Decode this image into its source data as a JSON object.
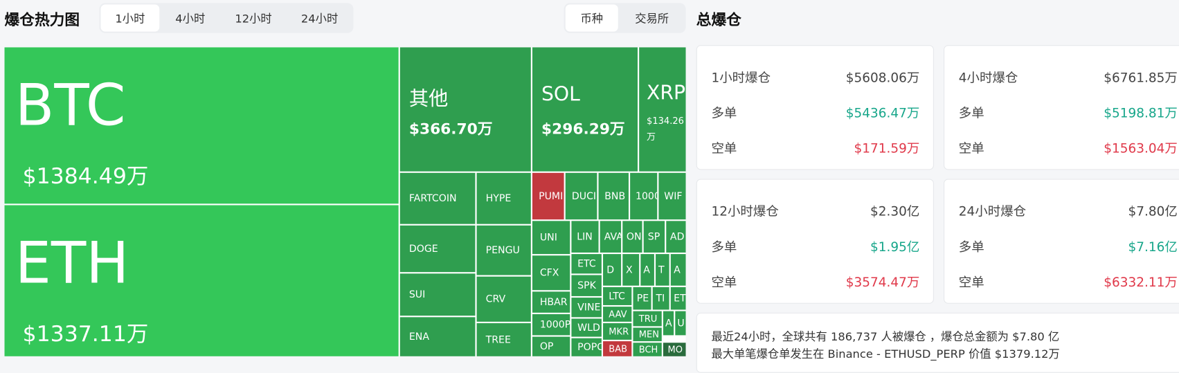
{
  "header": {
    "title": "爆仓热力图",
    "time_tabs": [
      "1小时",
      "4小时",
      "12小时",
      "24小时"
    ],
    "active_time_tab": 0,
    "view_tabs": [
      "币种",
      "交易所"
    ],
    "active_view_tab": 0
  },
  "treemap": {
    "tiles": [
      {
        "label": "BTC",
        "value": "$1384.49万",
        "color": "#34c759"
      },
      {
        "label": "ETH",
        "value": "$1337.11万",
        "color": "#34c759"
      },
      {
        "label": "其他",
        "value": "$366.70万",
        "color": "#2f9e4f"
      },
      {
        "label": "SOL",
        "value": "$296.29万",
        "color": "#2f9e4f"
      },
      {
        "label": "XRP",
        "value": "$134.26万",
        "color": "#2f9e4f"
      },
      {
        "label": "FARTCOIN",
        "color": "#2f9e4f"
      },
      {
        "label": "HYPE",
        "color": "#2f9e4f"
      },
      {
        "label": "DOGE",
        "color": "#2f9e4f"
      },
      {
        "label": "PENGU",
        "color": "#2f9e4f"
      },
      {
        "label": "SUI",
        "color": "#2f9e4f"
      },
      {
        "label": "CRV",
        "color": "#2f9e4f"
      },
      {
        "label": "ENA",
        "color": "#2f9e4f"
      },
      {
        "label": "TREE",
        "color": "#2f9e4f"
      },
      {
        "label": "PUMI",
        "color": "#c2393e"
      },
      {
        "label": "DUCI",
        "color": "#2f9e4f"
      },
      {
        "label": "BNB",
        "color": "#2f9e4f"
      },
      {
        "label": "1000",
        "color": "#2f9e4f"
      },
      {
        "label": "WIF",
        "color": "#2f9e4f"
      },
      {
        "label": "UNI",
        "color": "#2f9e4f"
      },
      {
        "label": "LIN",
        "color": "#2f9e4f"
      },
      {
        "label": "AVA",
        "color": "#2f9e4f"
      },
      {
        "label": "ON",
        "color": "#2f9e4f"
      },
      {
        "label": "SP",
        "color": "#2f9e4f"
      },
      {
        "label": "AD",
        "color": "#2f9e4f"
      },
      {
        "label": "CFX",
        "color": "#2f9e4f"
      },
      {
        "label": "ETC",
        "color": "#2f9e4f"
      },
      {
        "label": "D",
        "color": "#2f9e4f"
      },
      {
        "label": "X",
        "color": "#2f9e4f"
      },
      {
        "label": "A",
        "color": "#2f9e4f"
      },
      {
        "label": "T",
        "color": "#2f9e4f"
      },
      {
        "label": "A",
        "color": "#2f9e4f"
      },
      {
        "label": "SPK",
        "color": "#2f9e4f"
      },
      {
        "label": "HBAR",
        "color": "#2f9e4f"
      },
      {
        "label": "VINE",
        "color": "#2f9e4f"
      },
      {
        "label": "LTC",
        "color": "#2f9e4f"
      },
      {
        "label": "AAV",
        "color": "#2f9e4f"
      },
      {
        "label": "PE",
        "color": "#2f9e4f"
      },
      {
        "label": "TI",
        "color": "#2f9e4f"
      },
      {
        "label": "ET",
        "color": "#2f9e4f"
      },
      {
        "label": "1000P",
        "color": "#2f9e4f"
      },
      {
        "label": "WLD",
        "color": "#2f9e4f"
      },
      {
        "label": "MKR",
        "color": "#2f9e4f"
      },
      {
        "label": "TRU",
        "color": "#2f9e4f"
      },
      {
        "label": "A",
        "color": "#2f9e4f"
      },
      {
        "label": "U",
        "color": "#2f9e4f"
      },
      {
        "label": "MEN",
        "color": "#2f9e4f"
      },
      {
        "label": "OP",
        "color": "#2f9e4f"
      },
      {
        "label": "POPC",
        "color": "#2f9e4f"
      },
      {
        "label": "BAB",
        "color": "#c2393e"
      },
      {
        "label": "BCH",
        "color": "#2f9e4f"
      },
      {
        "label": "MO",
        "color": "#2a6b3d"
      }
    ]
  },
  "summary": {
    "title": "总爆仓",
    "cards": [
      {
        "title": "1小时爆仓",
        "total": "$5608.06万",
        "long_label": "多单",
        "long": "$5436.47万",
        "short_label": "空单",
        "short": "$171.59万"
      },
      {
        "title": "4小时爆仓",
        "total": "$6761.85万",
        "long_label": "多单",
        "long": "$5198.81万",
        "short_label": "空单",
        "short": "$1563.04万"
      },
      {
        "title": "12小时爆仓",
        "total": "$2.30亿",
        "long_label": "多单",
        "long": "$1.95亿",
        "short_label": "空单",
        "short": "$3574.47万"
      },
      {
        "title": "24小时爆仓",
        "total": "$7.80亿",
        "long_label": "多单",
        "long": "$7.16亿",
        "short_label": "空单",
        "short": "$6332.11万"
      }
    ],
    "footer": [
      "最近24小时，全球共有 186,737 人被爆仓 ，爆仓总金额为 $7.80 亿",
      "最大单笔爆仓单发生在 Binance - ETHUSD_PERP 价值 $1379.12万"
    ]
  }
}
